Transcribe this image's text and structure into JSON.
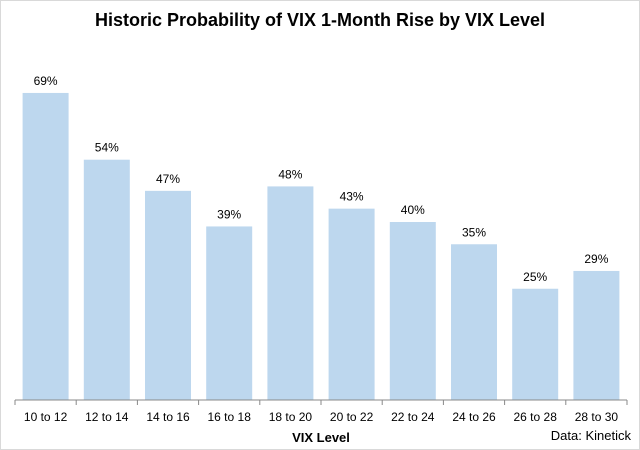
{
  "chart_data": {
    "type": "bar",
    "title": "Historic Probability of VIX 1-Month Rise by VIX Level",
    "xlabel": "VIX Level",
    "ylabel": "",
    "categories": [
      "10 to 12",
      "12 to 14",
      "14 to 16",
      "16 to 18",
      "18 to 20",
      "20 to 22",
      "22 to 24",
      "24 to 26",
      "26 to 28",
      "28 to 30"
    ],
    "values": [
      69,
      54,
      47,
      39,
      48,
      43,
      40,
      35,
      25,
      29
    ],
    "value_labels": [
      "69%",
      "54%",
      "47%",
      "39%",
      "48%",
      "43%",
      "40%",
      "35%",
      "25%",
      "29%"
    ],
    "unit": "%",
    "ylim": [
      0,
      80
    ],
    "grid": false,
    "legend": "none",
    "bar_color": "#bdd7ee",
    "source": "Data: Kinetick"
  }
}
